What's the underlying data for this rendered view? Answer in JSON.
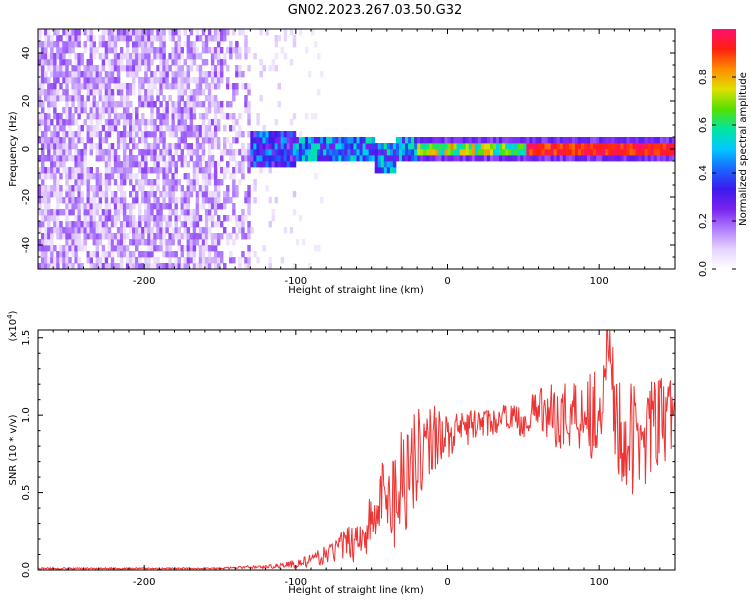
{
  "title": "GN02.2023.267.03.50.G32",
  "colors": {
    "snr_line": "#ee3333",
    "spectrogram_base": "#7a22ee",
    "colormap": [
      "#ffffff",
      "#e6d2ff",
      "#b07cff",
      "#7a22ee",
      "#3a1aee",
      "#1a66ff",
      "#00c8ff",
      "#00e6a0",
      "#55e000",
      "#e0e000",
      "#ff8c00",
      "#ff2010",
      "#ff1070"
    ]
  },
  "chart_data": [
    {
      "type": "heatmap",
      "xlabel": "Height of straight line (km)",
      "ylabel": "Frequency (Hz)",
      "xlim": [
        -270,
        150
      ],
      "ylim": [
        -50,
        50
      ],
      "xticks": [
        -200,
        -100,
        0,
        100
      ],
      "xtick_labels": [
        "-200",
        "-100",
        "0",
        "100"
      ],
      "yticks": [
        -40,
        -20,
        0,
        20,
        40
      ],
      "ytick_labels": [
        "-40",
        "-20",
        "0",
        "20",
        "40"
      ],
      "colorbar": {
        "label": "Normalized spectral amplitude",
        "range": [
          0,
          1
        ],
        "ticks": [
          0.0,
          0.2,
          0.4,
          0.6,
          0.8
        ],
        "tick_labels": [
          "0.0",
          "0.2",
          "0.4",
          "0.6",
          "0.8"
        ]
      },
      "regions": [
        {
          "x_from": -270,
          "x_to": -130,
          "description": "broadband noise, amplitude 0.05-0.2 across all frequencies"
        },
        {
          "x_from": -130,
          "x_to": -20,
          "description": "band near 0 Hz (about -8 to 8 Hz), amplitude 0.2-0.6"
        },
        {
          "x_from": -20,
          "x_to": 150,
          "description": "narrow band at 0 Hz, amplitude up to about 1.0"
        }
      ]
    },
    {
      "type": "line",
      "xlabel": "Height of straight line (km)",
      "ylabel": "SNR (10 * v/v)",
      "y_multiplier_label": "(x10",
      "y_multiplier_exp": "4",
      "xlim": [
        -270,
        150
      ],
      "ylim": [
        0,
        1.55
      ],
      "xticks": [
        -200,
        -100,
        0,
        100
      ],
      "xtick_labels": [
        "-200",
        "-100",
        "0",
        "100"
      ],
      "yticks": [
        0.0,
        0.5,
        1.0,
        1.5
      ],
      "ytick_labels": [
        "0.0",
        "0.5",
        "1.0",
        "1.5"
      ],
      "series": [
        {
          "x": [
            -270,
            -250,
            -230,
            -210,
            -190,
            -170,
            -150,
            -130,
            -120,
            -110,
            -100,
            -90,
            -80,
            -70,
            -60,
            -50,
            -45,
            -40,
            -35,
            -30,
            -25,
            -20,
            -15,
            -10,
            -5,
            0,
            10,
            20,
            30,
            40,
            50,
            60,
            70,
            80,
            90,
            100,
            105,
            110,
            120,
            130,
            140,
            150
          ],
          "y": [
            0.01,
            0.01,
            0.01,
            0.01,
            0.01,
            0.01,
            0.01,
            0.02,
            0.02,
            0.03,
            0.04,
            0.06,
            0.1,
            0.15,
            0.2,
            0.3,
            0.4,
            0.55,
            0.45,
            0.6,
            0.7,
            0.75,
            0.8,
            0.85,
            0.9,
            0.85,
            0.9,
            0.95,
            0.95,
            1.0,
            0.95,
            1.05,
            1.0,
            1.0,
            1.05,
            1.0,
            1.6,
            1.0,
            0.8,
            0.9,
            0.95,
            1.0
          ],
          "spread": [
            0.005,
            0.005,
            0.005,
            0.005,
            0.005,
            0.005,
            0.005,
            0.01,
            0.01,
            0.02,
            0.03,
            0.04,
            0.06,
            0.1,
            0.15,
            0.2,
            0.25,
            0.3,
            0.35,
            0.4,
            0.4,
            0.3,
            0.25,
            0.25,
            0.2,
            0.15,
            0.12,
            0.1,
            0.08,
            0.08,
            0.1,
            0.15,
            0.2,
            0.25,
            0.3,
            0.35,
            0.4,
            0.4,
            0.4,
            0.35,
            0.3,
            0.3
          ]
        }
      ]
    }
  ]
}
